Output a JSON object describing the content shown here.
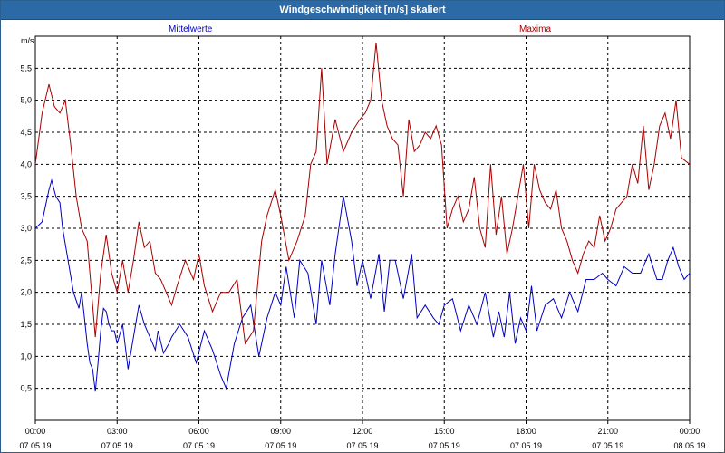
{
  "window": {
    "title": "Windgeschwindigkeit [m/s] skaliert"
  },
  "colors": {
    "mean": "#0000c0",
    "max": "#a80000",
    "grid": "#000000"
  },
  "chart_data": {
    "type": "line",
    "title": "Windgeschwindigkeit [m/s] skaliert",
    "ylabel": "m/s",
    "xlabel": "",
    "ylim": [
      0,
      6.0
    ],
    "y_ticks": [
      "0.5",
      "1.0",
      "1.5",
      "2.0",
      "2.5",
      "3.0",
      "3.5",
      "4.0",
      "4.5",
      "5.0",
      "5.5"
    ],
    "xlim_hours": [
      0,
      24
    ],
    "x_ticks": [
      {
        "time": "00:00",
        "date": "07.05.19"
      },
      {
        "time": "03:00",
        "date": "07.05.19"
      },
      {
        "time": "06:00",
        "date": "07.05.19"
      },
      {
        "time": "09:00",
        "date": "07.05.19"
      },
      {
        "time": "12:00",
        "date": "07.05.19"
      },
      {
        "time": "15:00",
        "date": "07.05.19"
      },
      {
        "time": "18:00",
        "date": "07.05.19"
      },
      {
        "time": "21:00",
        "date": "07.05.19"
      },
      {
        "time": "00:00",
        "date": "08.05.19"
      }
    ],
    "grid": true,
    "series": [
      {
        "name": "Mittelwerte",
        "color": "#0000c0",
        "legend_position": "top-left",
        "x": [
          0.0,
          0.25,
          0.5,
          0.6,
          0.75,
          0.9,
          1.0,
          1.2,
          1.4,
          1.6,
          1.7,
          1.8,
          1.9,
          2.0,
          2.1,
          2.2,
          2.3,
          2.4,
          2.5,
          2.6,
          2.7,
          2.8,
          2.9,
          3.0,
          3.2,
          3.4,
          3.6,
          3.8,
          4.0,
          4.2,
          4.4,
          4.5,
          4.7,
          4.9,
          5.0,
          5.3,
          5.6,
          5.9,
          6.2,
          6.5,
          6.8,
          7.0,
          7.3,
          7.6,
          7.9,
          8.2,
          8.5,
          8.8,
          9.0,
          9.2,
          9.5,
          9.7,
          10.0,
          10.3,
          10.5,
          10.8,
          11.0,
          11.3,
          11.6,
          11.8,
          12.0,
          12.3,
          12.6,
          12.8,
          13.0,
          13.2,
          13.5,
          13.8,
          14.0,
          14.3,
          14.6,
          14.8,
          15.0,
          15.3,
          15.6,
          15.9,
          16.2,
          16.5,
          16.8,
          17.0,
          17.2,
          17.4,
          17.6,
          17.8,
          18.0,
          18.2,
          18.4,
          18.7,
          19.0,
          19.3,
          19.6,
          19.9,
          20.2,
          20.5,
          20.8,
          21.0,
          21.3,
          21.6,
          21.9,
          22.2,
          22.5,
          22.8,
          23.0,
          23.2,
          23.4,
          23.6,
          23.8,
          24.0
        ],
        "values": [
          3.0,
          3.1,
          3.6,
          3.75,
          3.5,
          3.4,
          3.0,
          2.5,
          2.0,
          1.75,
          2.0,
          1.6,
          1.2,
          0.9,
          0.8,
          0.45,
          0.9,
          1.4,
          1.75,
          1.7,
          1.5,
          1.4,
          1.4,
          1.2,
          1.5,
          0.8,
          1.3,
          1.8,
          1.5,
          1.3,
          1.1,
          1.4,
          1.05,
          1.2,
          1.3,
          1.5,
          1.3,
          0.9,
          1.4,
          1.1,
          0.7,
          0.5,
          1.2,
          1.6,
          1.8,
          1.0,
          1.6,
          2.0,
          1.8,
          2.4,
          1.6,
          2.5,
          2.3,
          1.5,
          2.5,
          1.8,
          2.6,
          3.5,
          2.8,
          2.1,
          2.5,
          1.9,
          2.6,
          1.7,
          2.5,
          2.5,
          1.9,
          2.6,
          1.6,
          1.8,
          1.6,
          1.5,
          1.8,
          1.9,
          1.4,
          1.8,
          1.5,
          2.0,
          1.3,
          1.7,
          1.3,
          2.0,
          1.2,
          1.6,
          1.4,
          2.1,
          1.4,
          1.8,
          1.9,
          1.6,
          2.0,
          1.7,
          2.2,
          2.2,
          2.3,
          2.2,
          2.1,
          2.4,
          2.3,
          2.3,
          2.6,
          2.2,
          2.2,
          2.5,
          2.7,
          2.4,
          2.2,
          2.3
        ]
      },
      {
        "name": "Maxima",
        "color": "#a80000",
        "legend_position": "top-right",
        "x": [
          0.0,
          0.25,
          0.5,
          0.7,
          0.9,
          1.1,
          1.3,
          1.5,
          1.7,
          1.9,
          2.0,
          2.2,
          2.4,
          2.6,
          2.8,
          3.0,
          3.2,
          3.4,
          3.6,
          3.8,
          4.0,
          4.2,
          4.4,
          4.6,
          4.8,
          5.0,
          5.2,
          5.5,
          5.8,
          6.0,
          6.2,
          6.5,
          6.8,
          7.1,
          7.4,
          7.7,
          8.0,
          8.3,
          8.5,
          8.8,
          9.0,
          9.3,
          9.6,
          9.9,
          10.1,
          10.3,
          10.5,
          10.7,
          11.0,
          11.3,
          11.6,
          11.9,
          12.1,
          12.3,
          12.5,
          12.7,
          12.9,
          13.1,
          13.3,
          13.5,
          13.7,
          13.9,
          14.1,
          14.3,
          14.5,
          14.7,
          14.9,
          15.1,
          15.3,
          15.5,
          15.7,
          15.9,
          16.1,
          16.3,
          16.5,
          16.7,
          16.9,
          17.1,
          17.3,
          17.5,
          17.7,
          17.9,
          18.1,
          18.3,
          18.5,
          18.7,
          18.9,
          19.1,
          19.3,
          19.5,
          19.7,
          19.9,
          20.1,
          20.3,
          20.5,
          20.7,
          20.9,
          21.1,
          21.3,
          21.5,
          21.7,
          21.9,
          22.1,
          22.3,
          22.5,
          22.7,
          22.9,
          23.1,
          23.3,
          23.5,
          23.7,
          24.0
        ],
        "values": [
          4.0,
          4.8,
          5.25,
          4.9,
          4.8,
          5.0,
          4.3,
          3.5,
          3.0,
          2.8,
          2.3,
          1.3,
          2.3,
          2.9,
          2.3,
          2.0,
          2.5,
          2.0,
          2.5,
          3.1,
          2.7,
          2.8,
          2.3,
          2.2,
          2.0,
          1.8,
          2.1,
          2.5,
          2.2,
          2.6,
          2.1,
          1.7,
          2.0,
          2.0,
          2.2,
          1.2,
          1.4,
          2.8,
          3.2,
          3.6,
          3.2,
          2.5,
          2.8,
          3.2,
          4.0,
          4.2,
          5.5,
          4.0,
          4.7,
          4.2,
          4.5,
          4.7,
          4.8,
          5.0,
          5.9,
          5.0,
          4.6,
          4.4,
          4.3,
          3.5,
          4.7,
          4.2,
          4.3,
          4.5,
          4.4,
          4.6,
          4.3,
          3.0,
          3.3,
          3.5,
          3.1,
          3.3,
          3.8,
          3.0,
          2.7,
          4.0,
          2.9,
          3.5,
          2.6,
          3.0,
          3.5,
          4.0,
          3.0,
          4.0,
          3.6,
          3.4,
          3.3,
          3.6,
          3.0,
          2.8,
          2.5,
          2.3,
          2.6,
          2.8,
          2.7,
          3.2,
          2.8,
          3.0,
          3.3,
          3.4,
          3.5,
          4.0,
          3.7,
          4.6,
          3.6,
          4.0,
          4.6,
          4.8,
          4.4,
          5.0,
          4.1,
          4.0
        ]
      }
    ]
  }
}
